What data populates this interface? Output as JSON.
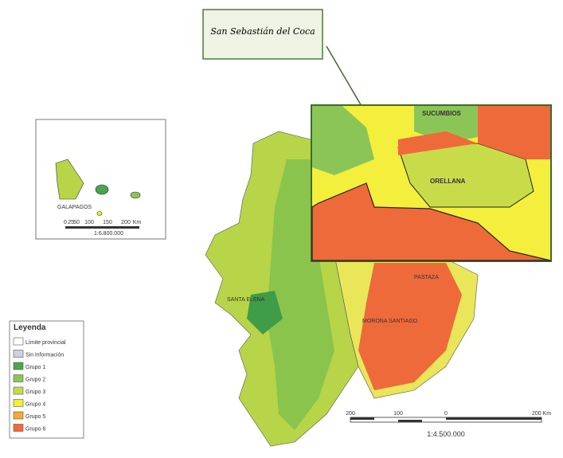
{
  "callout": {
    "title": "San Sebastián del Coca"
  },
  "inset_zoom": {
    "labels": [
      "SUCUMBIOS",
      "ORELLANA"
    ]
  },
  "map_labels": [
    "PASTAZA",
    "MORONA SANTIAGO",
    "SANTA ELENA"
  ],
  "galapagos": {
    "label": "GALAPAGOS",
    "scale_labels": [
      "0",
      "25",
      "50",
      "100",
      "150",
      "200",
      "Km"
    ],
    "scale": "1:6.800.000"
  },
  "legend": {
    "title": "Leyenda",
    "items": [
      {
        "label": "Límite provincial",
        "color": "#ffffff"
      },
      {
        "label": "Sin información",
        "color": "#c9d3e6"
      },
      {
        "label": "Grupo 1",
        "color": "#4aa54a"
      },
      {
        "label": "Grupo 2",
        "color": "#8cc557"
      },
      {
        "label": "Grupo 3",
        "color": "#c8dc4a"
      },
      {
        "label": "Grupo 4",
        "color": "#f4ee3c"
      },
      {
        "label": "Grupo 5",
        "color": "#f6a93b"
      },
      {
        "label": "Grupo 6",
        "color": "#ef6a3a"
      }
    ]
  },
  "scale_bar": {
    "labels": [
      "200",
      "100",
      "0",
      "200 Km"
    ],
    "scale": "1:4.500.000"
  }
}
